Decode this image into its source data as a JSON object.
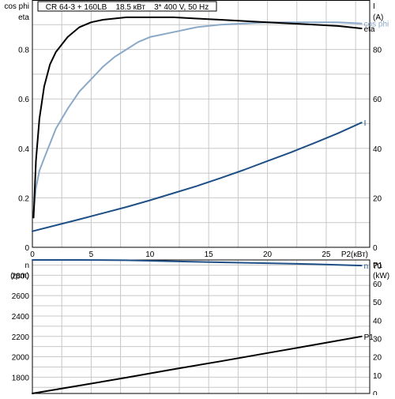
{
  "chart_data": [
    {
      "type": "line",
      "title": "CR 64-3 + 160LB    18.5 кВт    3* 400 V, 50 Hz",
      "left_axis_labels": [
        "cos phi",
        "eta"
      ],
      "right_axis_labels": [
        "I",
        "(A)"
      ],
      "xlabel": "P2(кВт)",
      "xlim": [
        0,
        28.7
      ],
      "ylim_left": [
        0,
        1.0
      ],
      "ylim_right": [
        0,
        100
      ],
      "x_ticks": [
        "0",
        "5",
        "10",
        "15",
        "20",
        "25"
      ],
      "y_ticks_left": [
        "0",
        "0.2",
        "0.4",
        "0.6",
        "0.8"
      ],
      "y_ticks_right": [
        "0",
        "20",
        "40",
        "60",
        "80"
      ],
      "grid": true,
      "series": [
        {
          "name": "cos phi",
          "axis": "left",
          "color": "#8aa8c8",
          "points": [
            [
              0.1,
              0.14
            ],
            [
              0.3,
              0.24
            ],
            [
              0.6,
              0.31
            ],
            [
              1,
              0.36
            ],
            [
              2,
              0.48
            ],
            [
              3,
              0.56
            ],
            [
              4,
              0.63
            ],
            [
              5,
              0.68
            ],
            [
              6,
              0.73
            ],
            [
              7,
              0.77
            ],
            [
              8,
              0.8
            ],
            [
              9,
              0.83
            ],
            [
              10,
              0.85
            ],
            [
              12,
              0.87
            ],
            [
              14,
              0.89
            ],
            [
              16,
              0.9
            ],
            [
              18,
              0.905
            ],
            [
              20,
              0.91
            ],
            [
              22,
              0.91
            ],
            [
              24,
              0.91
            ],
            [
              26,
              0.91
            ],
            [
              28,
              0.905
            ]
          ]
        },
        {
          "name": "eta",
          "axis": "left",
          "color": "#000000",
          "points": [
            [
              0.1,
              0.12
            ],
            [
              0.3,
              0.35
            ],
            [
              0.6,
              0.52
            ],
            [
              1,
              0.65
            ],
            [
              1.5,
              0.74
            ],
            [
              2,
              0.79
            ],
            [
              3,
              0.85
            ],
            [
              4,
              0.89
            ],
            [
              5,
              0.91
            ],
            [
              6,
              0.92
            ],
            [
              8,
              0.93
            ],
            [
              10,
              0.93
            ],
            [
              12,
              0.93
            ],
            [
              14,
              0.925
            ],
            [
              16,
              0.92
            ],
            [
              18,
              0.915
            ],
            [
              20,
              0.91
            ],
            [
              22,
              0.905
            ],
            [
              24,
              0.9
            ],
            [
              26,
              0.895
            ],
            [
              28,
              0.885
            ]
          ]
        },
        {
          "name": "I",
          "axis": "right",
          "color": "#1e4f86",
          "points": [
            [
              0,
              6.5
            ],
            [
              2,
              8.9
            ],
            [
              4,
              11.3
            ],
            [
              6,
              13.8
            ],
            [
              8,
              16.3
            ],
            [
              10,
              19
            ],
            [
              12,
              21.9
            ],
            [
              14,
              24.8
            ],
            [
              16,
              28
            ],
            [
              18,
              31.3
            ],
            [
              20,
              34.9
            ],
            [
              22,
              38.4
            ],
            [
              24,
              42.2
            ],
            [
              26,
              46.1
            ],
            [
              28,
              50.4
            ]
          ]
        }
      ]
    },
    {
      "type": "line",
      "left_axis_labels": [
        "n",
        "(rpm)"
      ],
      "right_axis_labels": [
        "P1",
        "(kW)"
      ],
      "ylim_left": [
        1640,
        2950
      ],
      "ylim_right": [
        0,
        73
      ],
      "y_ticks_left": [
        "1800",
        "2000",
        "2200",
        "2400",
        "2600",
        "2800"
      ],
      "y_ticks_right": [
        "0",
        "10",
        "20",
        "30",
        "40",
        "50",
        "60",
        "70"
      ],
      "grid": true,
      "series": [
        {
          "name": "n",
          "axis": "left",
          "color": "#1e4f86",
          "points": [
            [
              0,
              2960
            ],
            [
              4,
              2955
            ],
            [
              8,
              2947
            ],
            [
              12,
              2937
            ],
            [
              16,
              2927
            ],
            [
              20,
              2918
            ],
            [
              24,
              2908
            ],
            [
              28,
              2895
            ]
          ]
        },
        {
          "name": "P1",
          "axis": "right",
          "color": "#000000",
          "points": [
            [
              0,
              0
            ],
            [
              4,
              4.3
            ],
            [
              8,
              8.7
            ],
            [
              12,
              13.2
            ],
            [
              16,
              17.6
            ],
            [
              20,
              22.1
            ],
            [
              24,
              26.6
            ],
            [
              28,
              31.2
            ]
          ]
        }
      ]
    }
  ]
}
